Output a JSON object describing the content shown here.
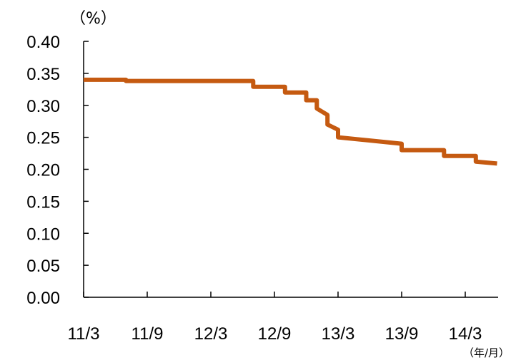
{
  "chart_data": {
    "type": "line",
    "title": "",
    "ylabel": "（%）",
    "xlabel": "（年/月）",
    "ylim": [
      0,
      0.4
    ],
    "y_ticks": [
      "0.00",
      "0.05",
      "0.10",
      "0.15",
      "0.20",
      "0.25",
      "0.30",
      "0.35",
      "0.40"
    ],
    "x_ticks": [
      "11/3",
      "11/9",
      "12/3",
      "12/9",
      "13/3",
      "13/9",
      "14/3"
    ],
    "line_color": "#c55a11",
    "series": [
      {
        "x": [
          "2011-03",
          "2011-07",
          "2011-07",
          "2012-07",
          "2012-07",
          "2012-10",
          "2012-10",
          "2012-12",
          "2012-12",
          "2013-01",
          "2013-01",
          "2013-02",
          "2013-02",
          "2013-03",
          "2013-03",
          "2013-09",
          "2013-09",
          "2014-01",
          "2014-01",
          "2014-04",
          "2014-04",
          "2014-06"
        ],
        "values": [
          0.34,
          0.34,
          0.338,
          0.338,
          0.329,
          0.329,
          0.32,
          0.32,
          0.308,
          0.308,
          0.295,
          0.285,
          0.27,
          0.262,
          0.25,
          0.24,
          0.23,
          0.23,
          0.221,
          0.221,
          0.212,
          0.209
        ]
      }
    ]
  }
}
